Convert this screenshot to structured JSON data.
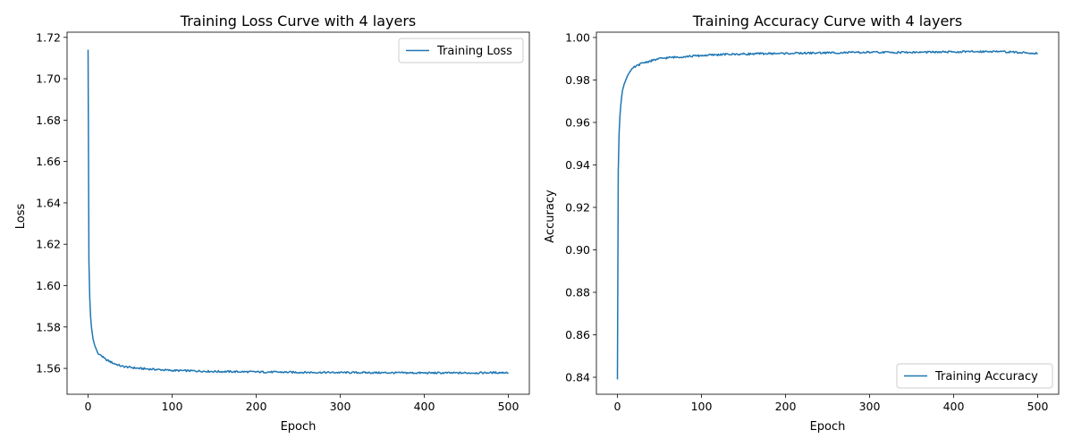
{
  "chart_data": [
    {
      "type": "line",
      "title": "Training Loss Curve with 4 layers",
      "xlabel": "Epoch",
      "ylabel": "Loss",
      "xlim": [
        -25,
        525
      ],
      "ylim": [
        1.5475,
        1.7225
      ],
      "xticks": [
        0,
        100,
        200,
        300,
        400,
        500
      ],
      "yticks": [
        1.56,
        1.58,
        1.6,
        1.62,
        1.64,
        1.66,
        1.68,
        1.7,
        1.72
      ],
      "yticks_decimals": 2,
      "grid": false,
      "legend_position": "upper right",
      "series": [
        {
          "name": "Training Loss",
          "color": "#1f77b4",
          "x": [
            0,
            1,
            2,
            3,
            4,
            5,
            6,
            8,
            10,
            12,
            15,
            20,
            25,
            30,
            40,
            50,
            60,
            80,
            100,
            125,
            150,
            175,
            200,
            250,
            300,
            350,
            400,
            450,
            500
          ],
          "y": [
            1.714,
            1.612,
            1.594,
            1.585,
            1.58,
            1.577,
            1.574,
            1.571,
            1.569,
            1.567,
            1.5665,
            1.5645,
            1.5635,
            1.5625,
            1.561,
            1.5605,
            1.56,
            1.5595,
            1.559,
            1.5588,
            1.5585,
            1.5584,
            1.5583,
            1.5581,
            1.558,
            1.5579,
            1.5578,
            1.5578,
            1.558
          ]
        }
      ]
    },
    {
      "type": "line",
      "title": "Training Accuracy Curve with 4 layers",
      "xlabel": "Epoch",
      "ylabel": "Accuracy",
      "xlim": [
        -25,
        525
      ],
      "ylim": [
        0.832,
        1.0025
      ],
      "xticks": [
        0,
        100,
        200,
        300,
        400,
        500
      ],
      "yticks": [
        0.84,
        0.86,
        0.88,
        0.9,
        0.92,
        0.94,
        0.96,
        0.98,
        1.0
      ],
      "yticks_decimals": 2,
      "grid": false,
      "legend_position": "lower right",
      "series": [
        {
          "name": "Training Accuracy",
          "color": "#1f77b4",
          "x": [
            0,
            1,
            2,
            3,
            4,
            5,
            6,
            8,
            10,
            12,
            15,
            20,
            25,
            30,
            40,
            50,
            60,
            80,
            100,
            125,
            150,
            175,
            200,
            250,
            300,
            350,
            400,
            450,
            500
          ],
          "y": [
            0.839,
            0.937,
            0.955,
            0.963,
            0.968,
            0.972,
            0.975,
            0.978,
            0.98,
            0.982,
            0.984,
            0.986,
            0.987,
            0.988,
            0.989,
            0.99,
            0.9905,
            0.991,
            0.9915,
            0.992,
            0.9922,
            0.9924,
            0.9925,
            0.9928,
            0.993,
            0.993,
            0.9932,
            0.9935,
            0.9925
          ]
        }
      ]
    }
  ]
}
